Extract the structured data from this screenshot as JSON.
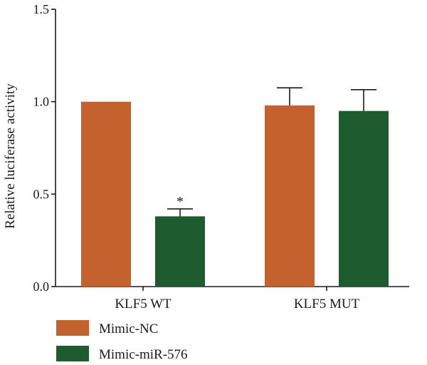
{
  "chart_data": {
    "type": "bar",
    "categories": [
      "KLF5 WT",
      "KLF5 MUT"
    ],
    "series": [
      {
        "name": "Mimic-NC",
        "values": [
          1.0,
          0.98
        ],
        "errors": [
          0,
          0.095
        ],
        "color": "#c4622d"
      },
      {
        "name": "Mimic-miR-576",
        "values": [
          0.38,
          0.95
        ],
        "errors": [
          0.04,
          0.115
        ],
        "color": "#1e5c30"
      }
    ],
    "ylabel": "Relative luciferase activity",
    "ylim": [
      0,
      1.5
    ],
    "yticks": [
      "0.0",
      "0.5",
      "1.0",
      "1.5"
    ],
    "annotations": [
      {
        "category": "KLF5 WT",
        "series": "Mimic-miR-576",
        "text": "*"
      }
    ],
    "legend_position": "bottom-left",
    "grid": false
  }
}
